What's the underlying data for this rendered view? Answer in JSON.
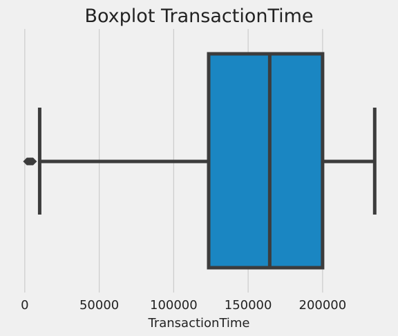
{
  "chart_data": {
    "type": "box",
    "title": "Boxplot TransactionTime",
    "xlabel": "TransactionTime",
    "ylabel": "",
    "xlim": [
      -12000,
      246000
    ],
    "x_ticks": [
      {
        "value": 0,
        "label": "0"
      },
      {
        "value": 50000,
        "label": "50000"
      },
      {
        "value": 100000,
        "label": "100000"
      },
      {
        "value": 150000,
        "label": "150000"
      },
      {
        "value": 200000,
        "label": "200000"
      }
    ],
    "grid": true,
    "box": {
      "whisker_low": 10000,
      "q1": 123500,
      "median": 164500,
      "q3": 200000,
      "whisker_high": 235000,
      "outliers": [
        1500,
        2000,
        2500,
        3000,
        3500,
        4000,
        4500,
        5000,
        5500
      ]
    },
    "colors": {
      "box_fill": "#1a86c2",
      "line": "#3c3c3c",
      "grid": "#cbcbcb",
      "background": "#f0f0f0"
    }
  }
}
